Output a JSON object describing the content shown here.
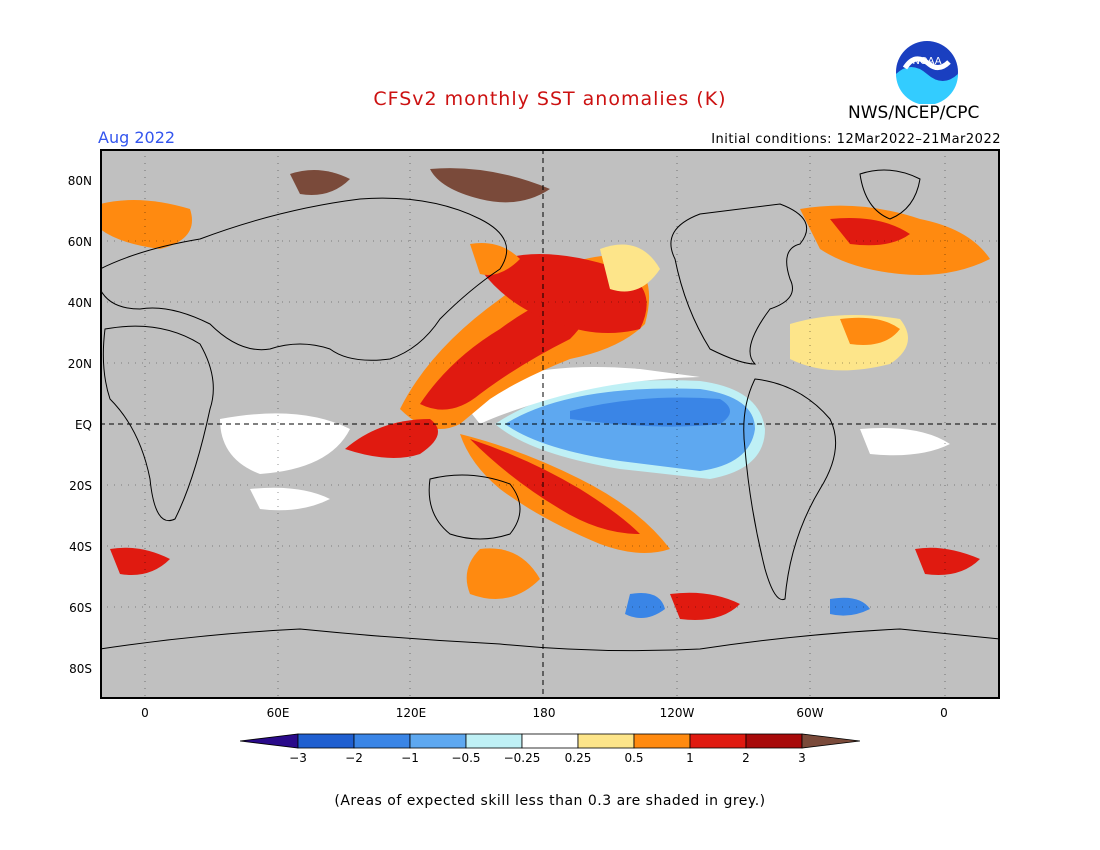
{
  "title": "CFSv2 monthly SST anomalies (K)",
  "valid_month": "Aug 2022",
  "initial_conditions": "Initial conditions: 12Mar2022–21Mar2022",
  "agency": "NWS/NCEP/CPC",
  "logo_text": "NOAA",
  "footnote": "(Areas of expected skill less than 0.3 are shaded in grey.)",
  "colors": {
    "title": "#cc1111",
    "date": "#3355ee",
    "land": "#c0c0c0",
    "low_skill": "#c0c0c0"
  },
  "map": {
    "lat_labels": [
      "80N",
      "60N",
      "40N",
      "20N",
      "EQ",
      "20S",
      "40S",
      "60S",
      "80S"
    ],
    "lon_labels": [
      "0",
      "60E",
      "120E",
      "180",
      "120W",
      "60W",
      "0"
    ]
  },
  "colorbar": {
    "labels": [
      "−3",
      "−2",
      "−1",
      "−0.5",
      "−0.25",
      "0.25",
      "0.5",
      "1",
      "2",
      "3"
    ],
    "colors": [
      "#2a0a8a",
      "#1f5fd0",
      "#3a85e6",
      "#5ea8f0",
      "#bff0f5",
      "#ffffff",
      "#fde58a",
      "#ff8a10",
      "#e01a10",
      "#a80a0a",
      "#7a4a3a"
    ]
  }
}
